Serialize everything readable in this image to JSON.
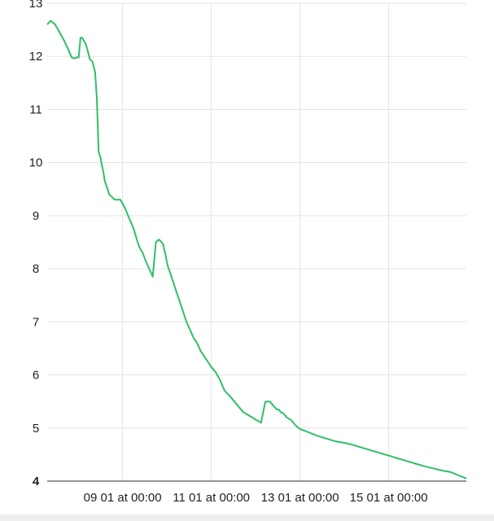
{
  "chart_data": {
    "type": "line",
    "title": "",
    "xlabel": "",
    "ylabel": "",
    "ylim": [
      4,
      13
    ],
    "xlim": [
      7.3,
      16.75
    ],
    "grid": true,
    "y_ticks": [
      {
        "value": 13,
        "label": "13",
        "emphasis": false
      },
      {
        "value": 12,
        "label": "12",
        "emphasis": false
      },
      {
        "value": 11,
        "label": "11",
        "emphasis": false
      },
      {
        "value": 10,
        "label": "10",
        "emphasis": false
      },
      {
        "value": 9,
        "label": "9",
        "emphasis": false
      },
      {
        "value": 8,
        "label": "8",
        "emphasis": false
      },
      {
        "value": 7,
        "label": "7",
        "emphasis": false
      },
      {
        "value": 6,
        "label": "6",
        "emphasis": false
      },
      {
        "value": 5,
        "label": "5",
        "emphasis": false
      },
      {
        "value": 4,
        "label": "4",
        "emphasis": true
      }
    ],
    "x_ticks": [
      {
        "value": 9,
        "label": "09 01 at 00:00"
      },
      {
        "value": 11,
        "label": "11 01 at 00:00"
      },
      {
        "value": 13,
        "label": "13 01 at 00:00"
      },
      {
        "value": 15,
        "label": "15 01 at 00:00"
      }
    ],
    "colors": {
      "line": "#2fbf6a"
    },
    "series": [
      {
        "x": [
          7.3,
          7.38,
          7.48,
          7.58,
          7.68,
          7.78,
          7.85,
          7.92,
          7.96,
          8.01,
          8.05,
          8.09,
          8.12,
          8.16,
          8.2,
          8.26,
          8.32,
          8.38,
          8.42,
          8.46,
          8.48,
          8.5,
          8.52,
          8.56,
          8.6,
          8.64,
          8.7,
          8.76,
          8.82,
          8.88,
          8.95,
          9.05,
          9.15,
          9.25,
          9.32,
          9.38,
          9.45,
          9.52,
          9.6,
          9.68,
          9.75,
          9.82,
          9.88,
          9.92,
          9.94,
          9.96,
          9.98,
          10.02,
          10.08,
          10.14,
          10.2,
          10.28,
          10.36,
          10.44,
          10.52,
          10.6,
          10.68,
          10.76,
          10.84,
          10.92,
          11.0,
          11.1,
          11.2,
          11.3,
          11.42,
          11.52,
          11.62,
          11.72,
          11.82,
          11.92,
          12.02,
          12.12,
          12.22,
          12.32,
          12.42,
          12.48,
          12.52,
          12.56,
          12.62,
          12.7,
          12.8,
          12.9,
          13.0,
          13.1,
          13.25,
          13.4,
          13.6,
          13.8,
          14.0,
          14.2,
          14.4,
          14.6,
          14.8,
          15.0,
          15.2,
          15.4,
          15.6,
          15.8,
          16.0,
          16.2,
          16.4,
          16.6,
          16.75
        ],
        "values": [
          12.6,
          12.67,
          12.6,
          12.45,
          12.3,
          12.12,
          11.98,
          11.96,
          11.98,
          11.98,
          12.35,
          12.35,
          12.3,
          12.25,
          12.15,
          11.95,
          11.9,
          11.7,
          11.2,
          10.2,
          10.15,
          10.1,
          10.0,
          9.85,
          9.65,
          9.55,
          9.4,
          9.35,
          9.3,
          9.3,
          9.3,
          9.15,
          8.95,
          8.75,
          8.55,
          8.4,
          8.3,
          8.15,
          8.0,
          7.85,
          8.5,
          8.55,
          8.5,
          8.45,
          8.35,
          8.3,
          8.2,
          8.05,
          7.9,
          7.75,
          7.6,
          7.4,
          7.2,
          7.0,
          6.85,
          6.7,
          6.6,
          6.45,
          6.35,
          6.25,
          6.15,
          6.05,
          5.9,
          5.7,
          5.6,
          5.5,
          5.4,
          5.3,
          5.25,
          5.2,
          5.15,
          5.1,
          5.5,
          5.5,
          5.4,
          5.35,
          5.35,
          5.3,
          5.28,
          5.2,
          5.15,
          5.05,
          4.98,
          4.95,
          4.9,
          4.85,
          4.8,
          4.75,
          4.72,
          4.68,
          4.63,
          4.58,
          4.53,
          4.48,
          4.43,
          4.38,
          4.33,
          4.28,
          4.24,
          4.2,
          4.17,
          4.1,
          4.05
        ]
      }
    ]
  }
}
